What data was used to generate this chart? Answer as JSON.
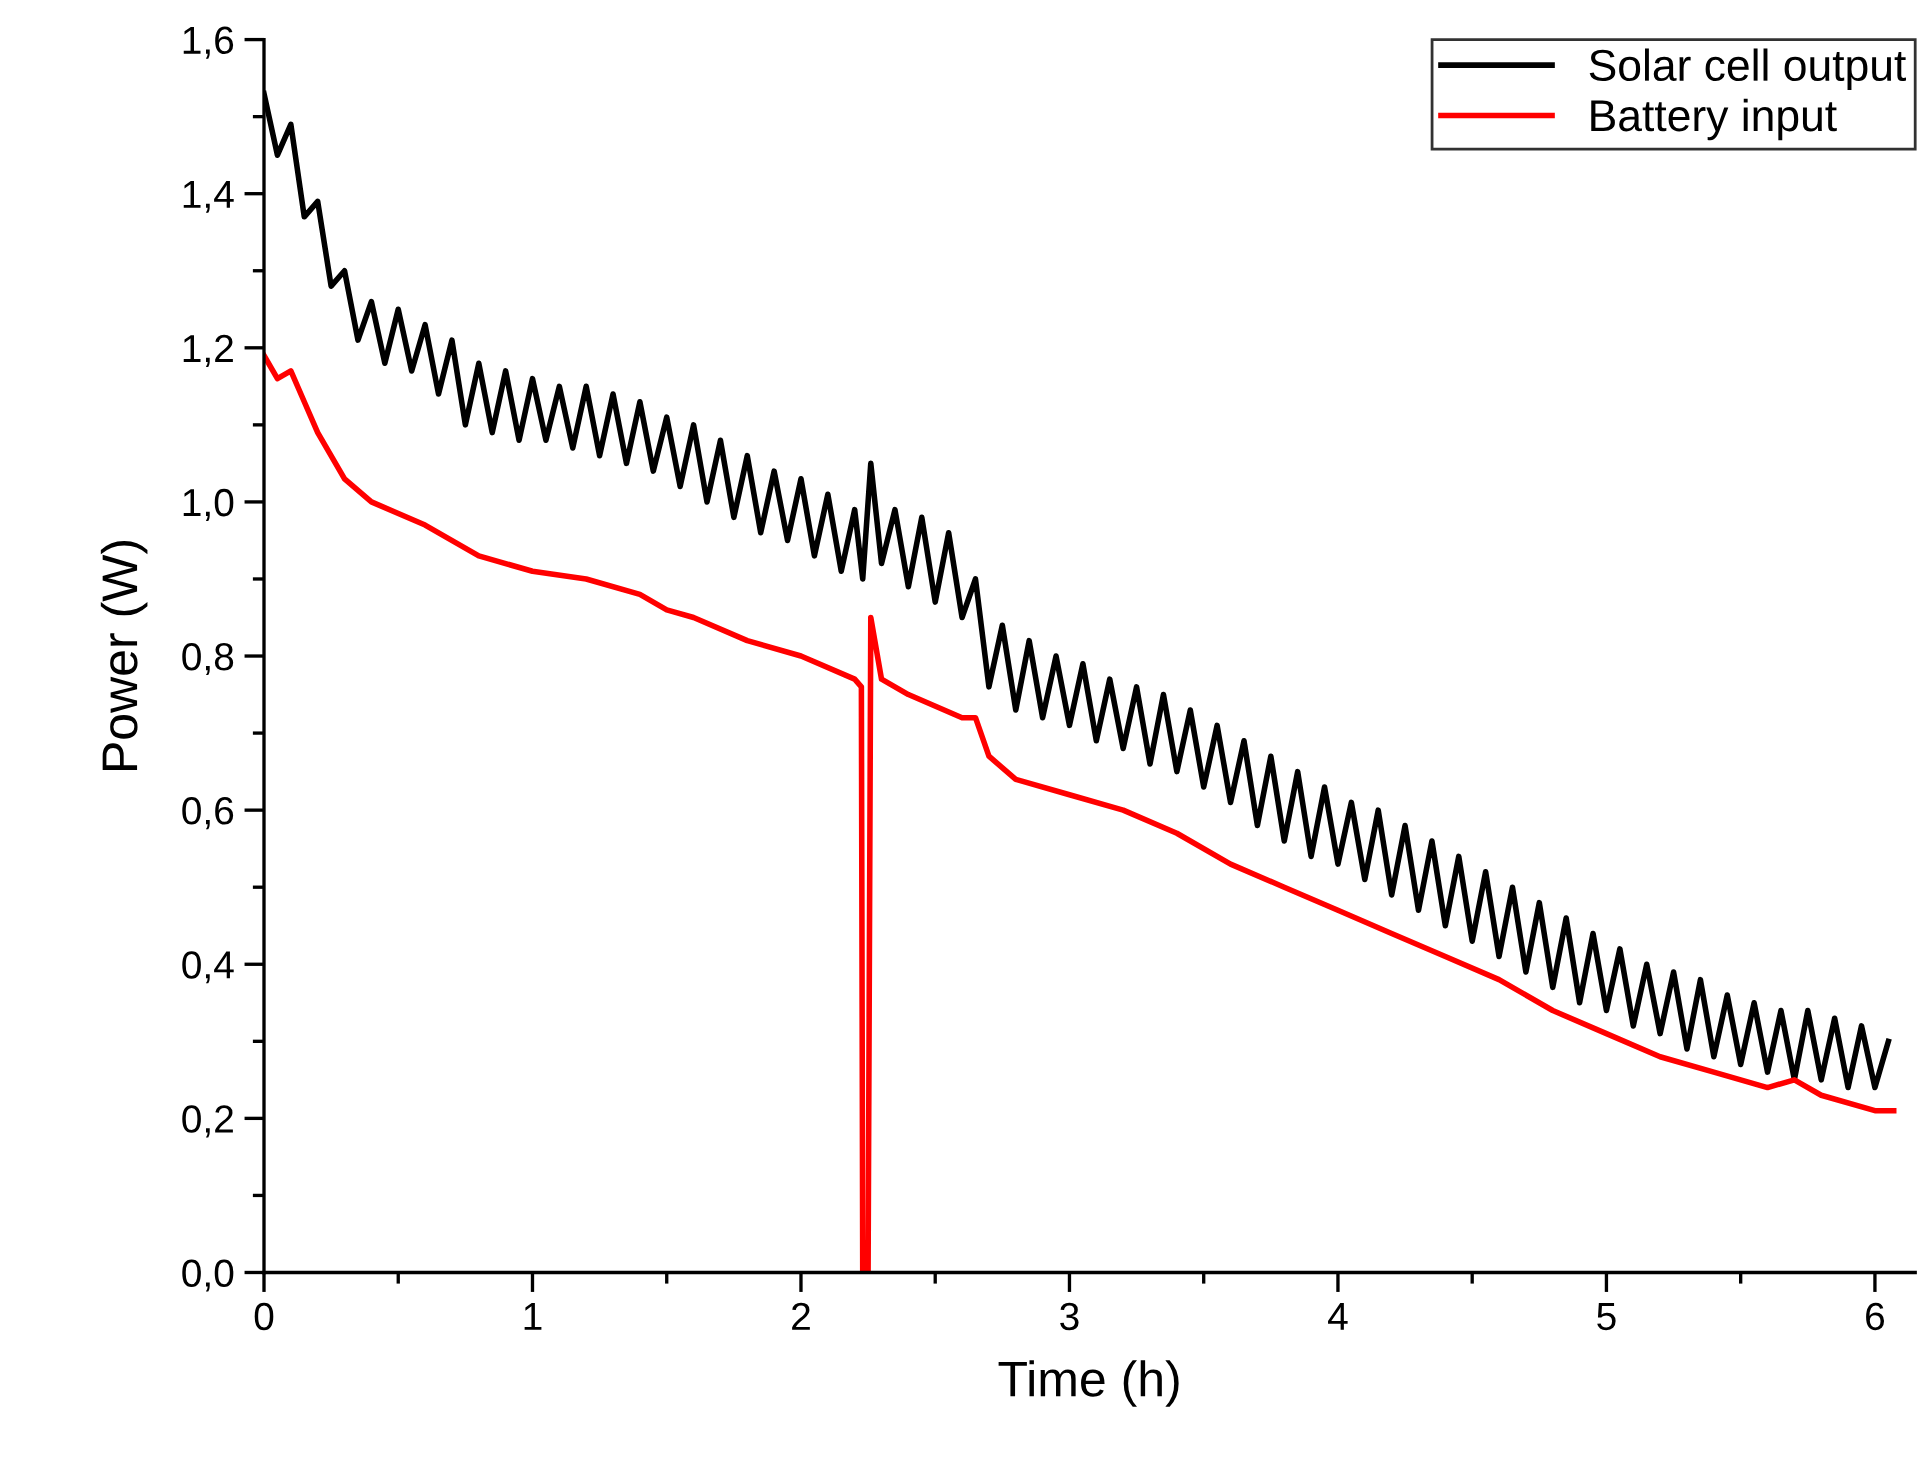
{
  "chart_data": {
    "type": "line",
    "xlabel": "Time (h)",
    "ylabel": "Power (W)",
    "xlim": [
      0,
      6.15
    ],
    "ylim": [
      0,
      1.6
    ],
    "xticks": [
      0,
      1,
      2,
      3,
      4,
      5,
      6
    ],
    "yticks": [
      {
        "value": 0,
        "label": "0,0"
      },
      {
        "value": 0.2,
        "label": "0,2"
      },
      {
        "value": 0.4,
        "label": "0,4"
      },
      {
        "value": 0.6,
        "label": "0,6"
      },
      {
        "value": 0.8,
        "label": "0,8"
      },
      {
        "value": 1.0,
        "label": "1,0"
      },
      {
        "value": 1.2,
        "label": "1,2"
      },
      {
        "value": 1.4,
        "label": "1,4"
      },
      {
        "value": 1.6,
        "label": "1,6"
      }
    ],
    "grid": false,
    "legend": "top right",
    "marker": "none",
    "line_style": "solid",
    "series": [
      {
        "name": "Solar cell output",
        "color": "#000000",
        "x": [
          0,
          0.05,
          0.1,
          0.15,
          0.2,
          0.25,
          0.3,
          0.35,
          0.4,
          0.45,
          0.5,
          0.55,
          0.6,
          0.65,
          0.7,
          0.75,
          0.8,
          0.85,
          0.9,
          0.95,
          1.0,
          1.05,
          1.1,
          1.15,
          1.2,
          1.25,
          1.3,
          1.35,
          1.4,
          1.45,
          1.5,
          1.55,
          1.6,
          1.65,
          1.7,
          1.75,
          1.8,
          1.85,
          1.9,
          1.95,
          2.0,
          2.05,
          2.1,
          2.15,
          2.2,
          2.23,
          2.26,
          2.3,
          2.35,
          2.4,
          2.45,
          2.5,
          2.55,
          2.6,
          2.65,
          2.7,
          2.75,
          2.8,
          2.85,
          2.9,
          2.95,
          3.0,
          3.05,
          3.1,
          3.15,
          3.2,
          3.25,
          3.3,
          3.35,
          3.4,
          3.45,
          3.5,
          3.55,
          3.6,
          3.65,
          3.7,
          3.75,
          3.8,
          3.85,
          3.9,
          3.95,
          4.0,
          4.05,
          4.1,
          4.15,
          4.2,
          4.25,
          4.3,
          4.35,
          4.4,
          4.45,
          4.5,
          4.55,
          4.6,
          4.65,
          4.7,
          4.75,
          4.8,
          4.85,
          4.9,
          4.95,
          5.0,
          5.05,
          5.1,
          5.15,
          5.2,
          5.25,
          5.3,
          5.35,
          5.4,
          5.45,
          5.5,
          5.55,
          5.6,
          5.65,
          5.7,
          5.75,
          5.8,
          5.85,
          5.9,
          5.95,
          6.0,
          6.05
        ],
        "values": [
          1.53,
          1.45,
          1.49,
          1.37,
          1.39,
          1.28,
          1.3,
          1.21,
          1.26,
          1.18,
          1.25,
          1.17,
          1.23,
          1.14,
          1.21,
          1.1,
          1.18,
          1.09,
          1.17,
          1.08,
          1.16,
          1.08,
          1.15,
          1.07,
          1.15,
          1.06,
          1.14,
          1.05,
          1.13,
          1.04,
          1.11,
          1.02,
          1.1,
          1.0,
          1.08,
          0.98,
          1.06,
          0.96,
          1.04,
          0.95,
          1.03,
          0.93,
          1.01,
          0.91,
          0.99,
          0.9,
          1.05,
          0.92,
          0.99,
          0.89,
          0.98,
          0.87,
          0.96,
          0.85,
          0.9,
          0.76,
          0.84,
          0.73,
          0.82,
          0.72,
          0.8,
          0.71,
          0.79,
          0.69,
          0.77,
          0.68,
          0.76,
          0.66,
          0.75,
          0.65,
          0.73,
          0.63,
          0.71,
          0.61,
          0.69,
          0.58,
          0.67,
          0.56,
          0.65,
          0.54,
          0.63,
          0.53,
          0.61,
          0.51,
          0.6,
          0.49,
          0.58,
          0.47,
          0.56,
          0.45,
          0.54,
          0.43,
          0.52,
          0.41,
          0.5,
          0.39,
          0.48,
          0.37,
          0.46,
          0.35,
          0.44,
          0.34,
          0.42,
          0.32,
          0.4,
          0.31,
          0.39,
          0.29,
          0.38,
          0.28,
          0.36,
          0.27,
          0.35,
          0.26,
          0.34,
          0.25,
          0.34,
          0.25,
          0.33,
          0.24,
          0.32,
          0.24,
          0.3
        ]
      },
      {
        "name": "Battery input",
        "color": "#ff0000",
        "x": [
          0,
          0.05,
          0.1,
          0.15,
          0.2,
          0.3,
          0.4,
          0.6,
          0.8,
          1.0,
          1.2,
          1.4,
          1.5,
          1.6,
          1.8,
          2.0,
          2.2,
          2.225,
          2.23,
          2.25,
          2.26,
          2.3,
          2.4,
          2.6,
          2.65,
          2.7,
          2.8,
          3.0,
          3.2,
          3.4,
          3.6,
          3.8,
          4.0,
          4.2,
          4.4,
          4.6,
          4.8,
          5.0,
          5.2,
          5.4,
          5.6,
          5.7,
          5.8,
          6.0,
          6.07
        ],
        "values": [
          1.19,
          1.16,
          1.17,
          1.13,
          1.09,
          1.03,
          1.0,
          0.97,
          0.93,
          0.91,
          0.9,
          0.88,
          0.86,
          0.85,
          0.82,
          0.8,
          0.77,
          0.76,
          0,
          0,
          0.85,
          0.77,
          0.75,
          0.72,
          0.72,
          0.67,
          0.64,
          0.62,
          0.6,
          0.57,
          0.53,
          0.5,
          0.47,
          0.44,
          0.41,
          0.38,
          0.34,
          0.31,
          0.28,
          0.26,
          0.24,
          0.25,
          0.23,
          0.21,
          0.21
        ]
      }
    ]
  }
}
